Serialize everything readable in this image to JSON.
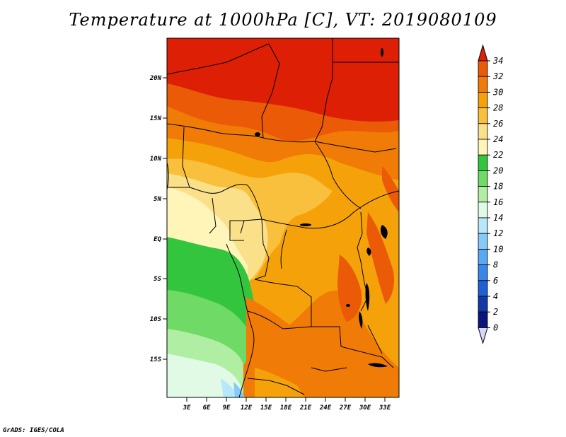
{
  "title": "Temperature at 1000hPa [C], VT: 2019080109",
  "credit": "GrADS: IGES/COLA",
  "lat_labels": [
    "20N",
    "15N",
    "10N",
    "5N",
    "EQ",
    "5S",
    "10S",
    "15S"
  ],
  "lon_labels": [
    "3E",
    "6E",
    "9E",
    "12E",
    "15E",
    "18E",
    "21E",
    "24E",
    "27E",
    "30E",
    "33E"
  ],
  "colorbar": {
    "labels": [
      "34",
      "32",
      "30",
      "28",
      "26",
      "24",
      "22",
      "20",
      "18",
      "16",
      "14",
      "12",
      "10",
      "8",
      "6",
      "4",
      "2",
      "0"
    ],
    "colors": [
      "#dc1f05",
      "#ea5a07",
      "#f07b06",
      "#f5a20a",
      "#f8c03c",
      "#fbe08a",
      "#fff5b8",
      "#33c53e",
      "#6fdb66",
      "#b0eea4",
      "#e0fae6",
      "#b7e7fa",
      "#86caf7",
      "#5aa8f2",
      "#3a87ea",
      "#1f60d6",
      "#1237a7",
      "#0a167c",
      "#d7d6fb"
    ]
  },
  "map": {
    "region": "Central Africa",
    "lon_range": [
      0,
      35
    ],
    "lat_range": [
      -19,
      24.5
    ]
  }
}
